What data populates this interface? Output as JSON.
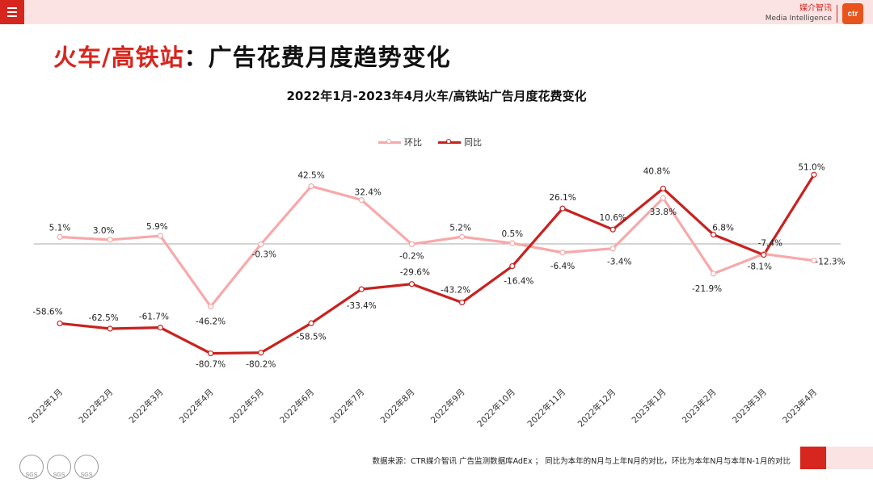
{
  "header": {
    "brand_cn": "媒介智讯",
    "brand_en": "Media Intelligence",
    "brand_logo": "ctr"
  },
  "page": {
    "title_red": "火车/高铁站",
    "title_sep": "：",
    "title_rest": "广告花费月度趋势变化"
  },
  "footer": {
    "source": "数据来源：CTR媒介智讯 广告监测数据库AdEx ； 同比为本年的N月与上年N月的对比，环比为本年N月与本年N-1月的对比",
    "badge_label": "SGS"
  },
  "colors": {
    "accent": "#d7261e",
    "hb": "#f7a9aa",
    "tb": "#c8221f"
  },
  "chart_data": {
    "type": "line",
    "title": "2022年1月-2023年4月火车/高铁站广告月度花费变化",
    "categories": [
      "2022年1月",
      "2022年2月",
      "2022年3月",
      "2022年4月",
      "2022年5月",
      "2022年6月",
      "2022年7月",
      "2022年8月",
      "2022年9月",
      "2022年10月",
      "2022年11月",
      "2022年12月",
      "2023年1月",
      "2023年2月",
      "2023年3月",
      "2023年4月"
    ],
    "series": [
      {
        "name": "环比",
        "values": [
          5.1,
          3.0,
          5.9,
          -46.2,
          -0.3,
          42.5,
          32.4,
          -0.2,
          5.2,
          0.5,
          -6.4,
          -3.4,
          33.8,
          -21.9,
          -7.4,
          -12.3
        ],
        "labels": [
          "5.1%",
          "3.0%",
          "5.9%",
          "-46.2%",
          "-0.3%",
          "42.5%",
          "32.4%",
          "-0.2%",
          "5.2%",
          "0.5%",
          "-6.4%",
          "-3.4%",
          "33.8%",
          "-21.9%",
          "-7.4%",
          "-12.3%"
        ]
      },
      {
        "name": "同比",
        "values": [
          -58.6,
          -62.5,
          -61.7,
          -80.7,
          -80.2,
          -58.5,
          -33.4,
          -29.6,
          -43.2,
          -16.4,
          26.1,
          10.6,
          40.8,
          6.8,
          -8.1,
          51.0
        ],
        "labels": [
          "-58.6%",
          "-62.5%",
          "-61.7%",
          "-80.7%",
          "-80.2%",
          "-58.5%",
          "-33.4%",
          "-29.6%",
          "-43.2%",
          "-16.4%",
          "26.1%",
          "10.6%",
          "40.8%",
          "6.8%",
          "-8.1%",
          "51.0%"
        ]
      }
    ],
    "legend": "top-center",
    "grid": false
  }
}
